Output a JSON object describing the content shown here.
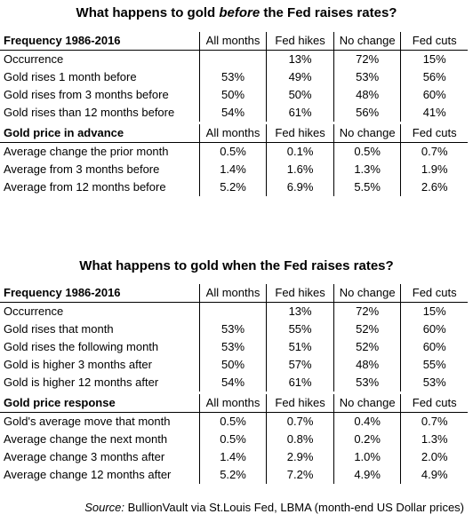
{
  "top": {
    "title_pre": "What happens to gold ",
    "title_em": "before",
    "title_post": " the Fed raises rates?",
    "columns": [
      "All months",
      "Fed hikes",
      "No change",
      "Fed cuts"
    ],
    "sections": [
      {
        "header": "Frequency 1986-2016",
        "rows": [
          {
            "label": "Occurrence",
            "values": [
              "",
              "13%",
              "72%",
              "15%"
            ]
          },
          {
            "label": "Gold rises 1 month before",
            "values": [
              "53%",
              "49%",
              "53%",
              "56%"
            ]
          },
          {
            "label": "Gold rises from 3 months before",
            "values": [
              "50%",
              "50%",
              "48%",
              "60%"
            ]
          },
          {
            "label": "Gold rises than 12 months before",
            "values": [
              "54%",
              "61%",
              "56%",
              "41%"
            ]
          }
        ]
      },
      {
        "header": "Gold price in advance",
        "rows": [
          {
            "label": "Average change the prior month",
            "values": [
              "0.5%",
              "0.1%",
              "0.5%",
              "0.7%"
            ]
          },
          {
            "label": "Average from 3 months before",
            "values": [
              "1.4%",
              "1.6%",
              "1.3%",
              "1.9%"
            ]
          },
          {
            "label": "Average from 12 months before",
            "values": [
              "5.2%",
              "6.9%",
              "5.5%",
              "2.6%"
            ]
          }
        ]
      }
    ]
  },
  "bottom": {
    "title": "What happens to gold when the Fed raises rates?",
    "columns": [
      "All months",
      "Fed hikes",
      "No change",
      "Fed cuts"
    ],
    "sections": [
      {
        "header": "Frequency 1986-2016",
        "rows": [
          {
            "label": "Occurrence",
            "values": [
              "",
              "13%",
              "72%",
              "15%"
            ]
          },
          {
            "label": "Gold rises that month",
            "values": [
              "53%",
              "55%",
              "52%",
              "60%"
            ]
          },
          {
            "label": "Gold rises the following month",
            "values": [
              "53%",
              "51%",
              "52%",
              "60%"
            ]
          },
          {
            "label": "Gold is higher 3 months after",
            "values": [
              "50%",
              "57%",
              "48%",
              "55%"
            ]
          },
          {
            "label": "Gold is higher 12 months after",
            "values": [
              "54%",
              "61%",
              "53%",
              "53%"
            ]
          }
        ]
      },
      {
        "header": "Gold price response",
        "rows": [
          {
            "label": "Gold's average move that month",
            "values": [
              "0.5%",
              "0.7%",
              "0.4%",
              "0.7%"
            ]
          },
          {
            "label": "Average change the next month",
            "values": [
              "0.5%",
              "0.8%",
              "0.2%",
              "1.3%"
            ]
          },
          {
            "label": "Average change 3 months after",
            "values": [
              "1.4%",
              "2.9%",
              "1.0%",
              "2.0%"
            ]
          },
          {
            "label": "Average change 12 months after",
            "values": [
              "5.2%",
              "7.2%",
              "4.9%",
              "4.9%"
            ]
          }
        ]
      }
    ]
  },
  "source": {
    "label": "Source:",
    "text": " BullionVault via St.Louis Fed, LBMA (month-end US Dollar prices)"
  }
}
